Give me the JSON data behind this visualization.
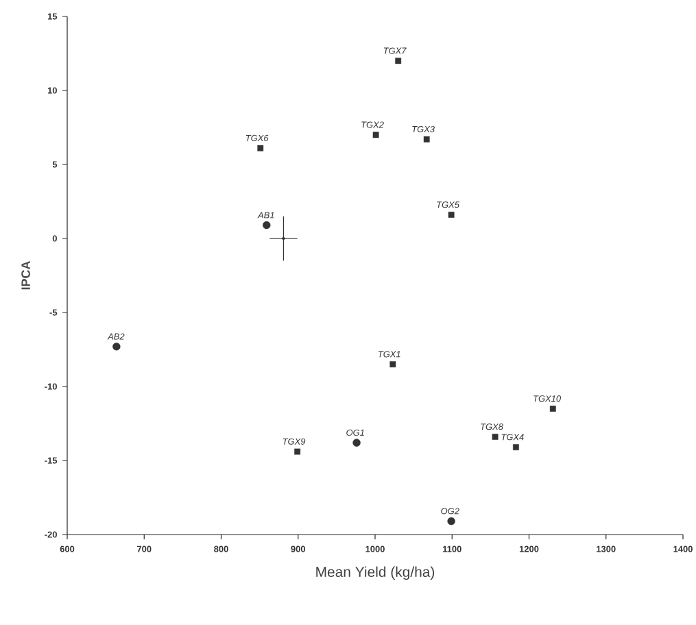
{
  "chart_data": {
    "type": "scatter",
    "xlabel": "Mean Yield (kg/ha)",
    "ylabel": "IPCA",
    "xlim": [
      600,
      1400
    ],
    "ylim": [
      -20,
      15
    ],
    "xticks": [
      600,
      700,
      800,
      900,
      1000,
      1100,
      1200,
      1300,
      1400
    ],
    "yticks": [
      -20,
      -15,
      -10,
      -5,
      0,
      5,
      10,
      15
    ],
    "series": [
      {
        "marker": "square",
        "color": "#333333",
        "x": [
          1023,
          1001,
          1067,
          1183,
          1099,
          851,
          1030,
          1156,
          899,
          1231
        ],
        "values": [
          -8.5,
          7.0,
          6.7,
          -14.1,
          1.6,
          6.1,
          12.0,
          -13.4,
          -14.4,
          -11.5
        ]
      },
      {
        "marker": "circle",
        "color": "#333333",
        "x": [
          859,
          664,
          976,
          1099
        ],
        "values": [
          0.9,
          -7.3,
          -13.8,
          -19.1
        ]
      },
      {
        "marker": "none",
        "color": "#333333",
        "x": [
          881
        ],
        "values": [
          0
        ],
        "errors": [
          1.5
        ],
        "xerrors": [
          18
        ]
      }
    ],
    "annotations": [
      {
        "text": "TGX1",
        "x": 1023,
        "y": -8.5
      },
      {
        "text": "TGX2",
        "x": 1001,
        "y": 7.0
      },
      {
        "text": "TGX3",
        "x": 1067,
        "y": 6.7
      },
      {
        "text": "TGX4",
        "x": 1183,
        "y": -14.1
      },
      {
        "text": "TGX5",
        "x": 1099,
        "y": 1.6
      },
      {
        "text": "TGX6",
        "x": 851,
        "y": 6.1
      },
      {
        "text": "TGX7",
        "x": 1030,
        "y": 12.0
      },
      {
        "text": "TGX8",
        "x": 1156,
        "y": -13.4
      },
      {
        "text": "TGX9",
        "x": 899,
        "y": -14.4
      },
      {
        "text": "TGX10",
        "x": 1231,
        "y": -11.5
      },
      {
        "text": "AB1",
        "x": 859,
        "y": 0.9
      },
      {
        "text": "AB2",
        "x": 664,
        "y": -7.3
      },
      {
        "text": "OG1",
        "x": 976,
        "y": -13.8
      },
      {
        "text": "OG2",
        "x": 1099,
        "y": -19.1
      }
    ]
  }
}
